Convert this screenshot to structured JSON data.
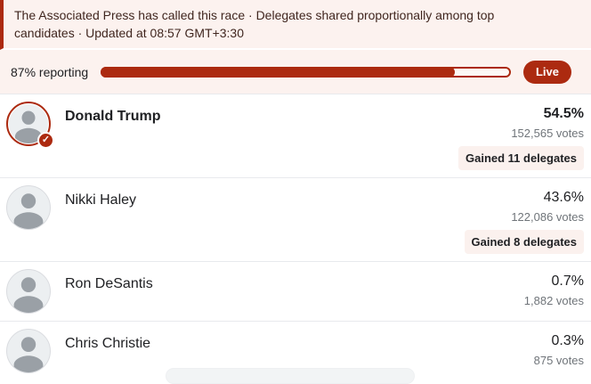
{
  "colors": {
    "accent": "#ac2a10",
    "banner_bg": "#fcf2ef",
    "badge_bg": "#fbf1ee",
    "text_dark": "#202124",
    "text_gray": "#70757a",
    "banner_text": "#40261f",
    "divider": "#e8eaed"
  },
  "banner": {
    "text": "The Associated Press has called this race · Delegates shared proportionally among top candidates · Updated at 08:57 GMT+3:30"
  },
  "reporting": {
    "label": "87% reporting",
    "percent": 87,
    "live_label": "Live"
  },
  "candidates": [
    {
      "name": "Donald Trump",
      "percent": "54.5%",
      "votes": "152,565 votes",
      "delegates": "Gained 11 delegates",
      "winner": true
    },
    {
      "name": "Nikki Haley",
      "percent": "43.6%",
      "votes": "122,086 votes",
      "delegates": "Gained 8 delegates",
      "winner": false
    },
    {
      "name": "Ron DeSantis",
      "percent": "0.7%",
      "votes": "1,882 votes",
      "delegates": "",
      "winner": false
    },
    {
      "name": "Chris Christie",
      "percent": "0.3%",
      "votes": "875 votes",
      "delegates": "",
      "winner": false
    }
  ]
}
